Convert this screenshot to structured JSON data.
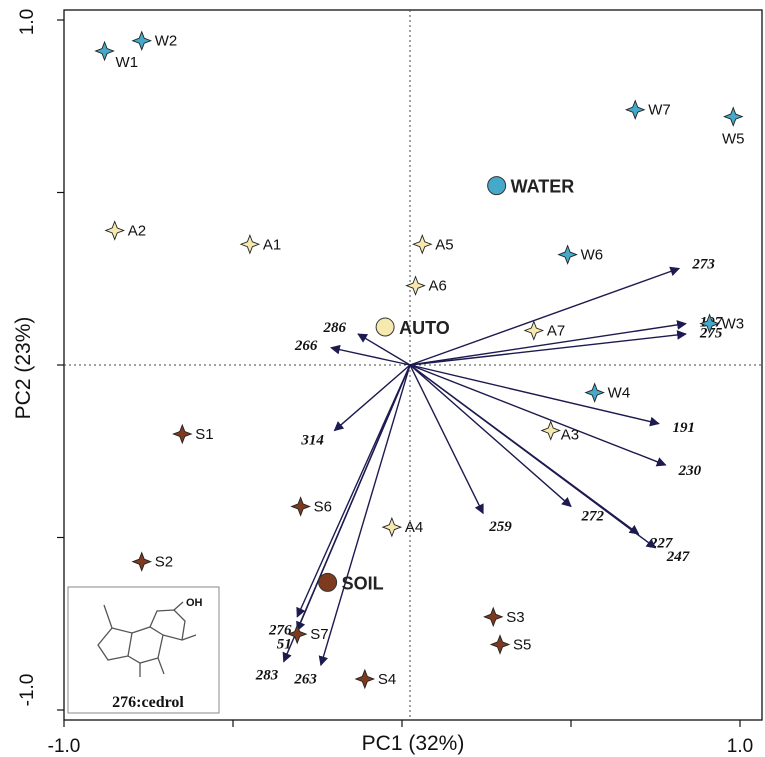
{
  "chart_data": {
    "type": "scatter",
    "subtype": "PCA biplot",
    "xlabel": "PC1 (32%)",
    "ylabel": "PC2 (23%)",
    "xlim": [
      -1.0,
      1.0
    ],
    "ylim": [
      -1.0,
      1.0
    ],
    "x_tick_labels": [
      "-1.0",
      "1.0"
    ],
    "y_tick_labels": [
      "1.0",
      "-1.0"
    ],
    "zero_lines": "dotted",
    "colors": {
      "W": "#45a9c9",
      "A": "#f5e9b0",
      "S": "#7e3a1e",
      "arrow": "#1c1a4f"
    },
    "points": [
      {
        "label": "W1",
        "group": "W",
        "x": -0.88,
        "y": 0.91
      },
      {
        "label": "W2",
        "group": "W",
        "x": -0.77,
        "y": 0.94
      },
      {
        "label": "W3",
        "group": "W",
        "x": 0.91,
        "y": 0.12
      },
      {
        "label": "W4",
        "group": "W",
        "x": 0.57,
        "y": -0.08
      },
      {
        "label": "W5",
        "group": "W",
        "x": 0.98,
        "y": 0.72
      },
      {
        "label": "W6",
        "group": "W",
        "x": 0.49,
        "y": 0.32
      },
      {
        "label": "W7",
        "group": "W",
        "x": 0.69,
        "y": 0.74
      },
      {
        "label": "A1",
        "group": "A",
        "x": -0.45,
        "y": 0.35
      },
      {
        "label": "A2",
        "group": "A",
        "x": -0.85,
        "y": 0.39
      },
      {
        "label": "A3",
        "group": "A",
        "x": 0.44,
        "y": -0.19
      },
      {
        "label": "A4",
        "group": "A",
        "x": -0.03,
        "y": -0.47
      },
      {
        "label": "A5",
        "group": "A",
        "x": 0.06,
        "y": 0.35
      },
      {
        "label": "A6",
        "group": "A",
        "x": 0.04,
        "y": 0.23
      },
      {
        "label": "A7",
        "group": "A",
        "x": 0.39,
        "y": 0.1
      },
      {
        "label": "S1",
        "group": "S",
        "x": -0.65,
        "y": -0.2
      },
      {
        "label": "S2",
        "group": "S",
        "x": -0.77,
        "y": -0.57
      },
      {
        "label": "S3",
        "group": "S",
        "x": 0.27,
        "y": -0.73
      },
      {
        "label": "S4",
        "group": "S",
        "x": -0.11,
        "y": -0.91
      },
      {
        "label": "S5",
        "group": "S",
        "x": 0.29,
        "y": -0.81
      },
      {
        "label": "S6",
        "group": "S",
        "x": -0.3,
        "y": -0.41
      },
      {
        "label": "S7",
        "group": "S",
        "x": -0.31,
        "y": -0.78
      }
    ],
    "groups": [
      {
        "label": "WATER",
        "group": "W",
        "x": 0.28,
        "y": 0.52
      },
      {
        "label": "AUTO",
        "group": "A",
        "x": -0.05,
        "y": 0.11
      },
      {
        "label": "SOIL",
        "group": "S",
        "x": -0.22,
        "y": -0.63
      }
    ],
    "vectors": [
      {
        "label": "273",
        "x": 0.82,
        "y": 0.28
      },
      {
        "label": "197",
        "x": 0.84,
        "y": 0.12
      },
      {
        "label": "275",
        "x": 0.84,
        "y": 0.09
      },
      {
        "label": "191",
        "x": 0.76,
        "y": -0.17
      },
      {
        "label": "230",
        "x": 0.78,
        "y": -0.29
      },
      {
        "label": "227",
        "x": 0.7,
        "y": -0.49
      },
      {
        "label": "247",
        "x": 0.75,
        "y": -0.53
      },
      {
        "label": "272",
        "x": 0.5,
        "y": -0.41
      },
      {
        "label": "259",
        "x": 0.24,
        "y": -0.43
      },
      {
        "label": "286",
        "x": -0.13,
        "y": 0.09
      },
      {
        "label": "266",
        "x": -0.21,
        "y": 0.05
      },
      {
        "label": "314",
        "x": -0.2,
        "y": -0.19
      },
      {
        "label": "276",
        "x": -0.31,
        "y": -0.73
      },
      {
        "label": "51",
        "x": -0.31,
        "y": -0.77
      },
      {
        "label": "283",
        "x": -0.35,
        "y": -0.86
      },
      {
        "label": "263",
        "x": -0.24,
        "y": -0.87
      }
    ],
    "inset": {
      "caption": "276:cedrol",
      "oh_label": "OH"
    }
  }
}
